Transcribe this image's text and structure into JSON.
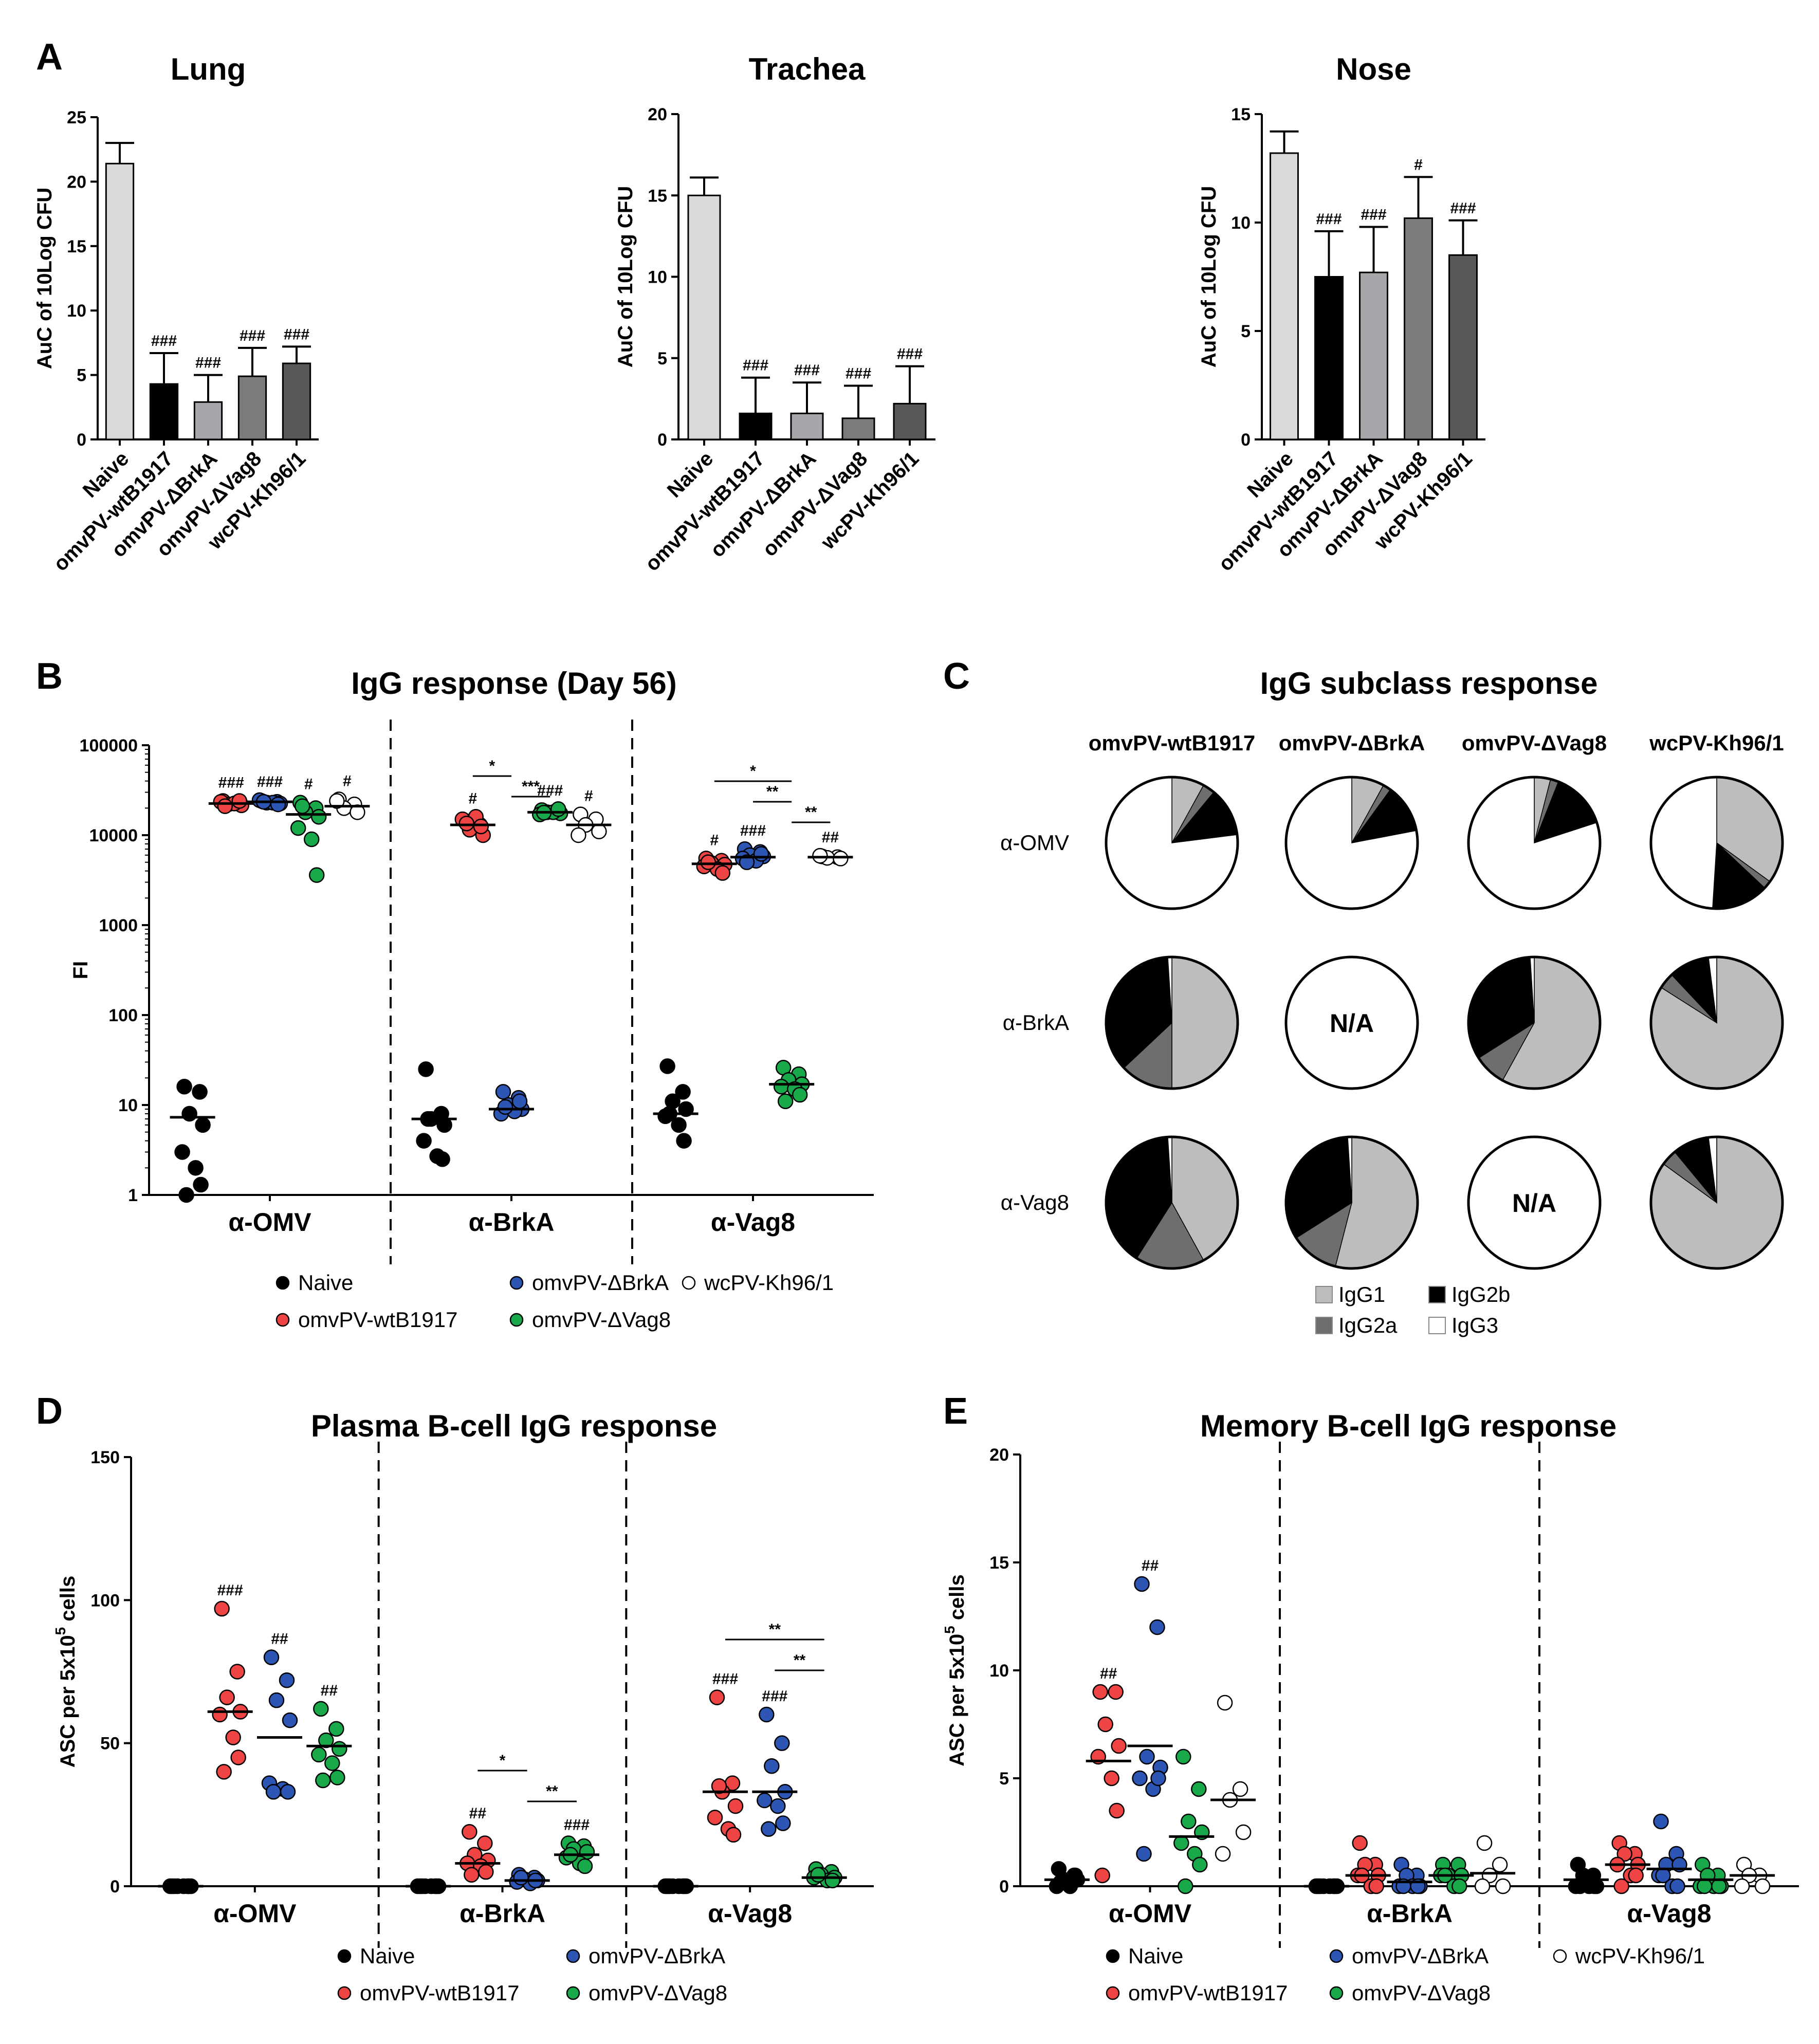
{
  "panel_labels": {
    "A": "A",
    "B": "B",
    "C": "C",
    "D": "D",
    "E": "E"
  },
  "colors": {
    "naive": "#000000",
    "wtB1917": "#ee4444",
    "dBrkA": "#2d55b4",
    "dVag8": "#19a84a",
    "wcPV": "#ffffff",
    "IgG1": "#bdbdbd",
    "IgG2a": "#6e6e6e",
    "IgG2b": "#000000",
    "IgG3": "#ffffff"
  },
  "chart_data": [
    {
      "id": "A-lung",
      "type": "bar",
      "title": "Lung",
      "ylabel": "AuC of 10Log CFU",
      "ylim": [
        0,
        25
      ],
      "yticks": [
        "0",
        "5",
        "10",
        "15",
        "20",
        "25"
      ],
      "categories": [
        "Naive",
        "omvPV-wtB1917",
        "omvPV-ΔBrkA",
        "omvPV-ΔVag8",
        "wcPV-Kh96/1"
      ],
      "values": [
        21.4,
        4.3,
        2.9,
        4.9,
        5.9
      ],
      "errors": [
        1.6,
        2.4,
        2.1,
        2.2,
        1.3
      ],
      "significance": [
        "",
        "###",
        "###",
        "###",
        "###"
      ],
      "bar_colors": [
        "#d9d9d9",
        "#000000",
        "#a6a7ab",
        "#7b7b7b",
        "#585858"
      ]
    },
    {
      "id": "A-trachea",
      "type": "bar",
      "title": "Trachea",
      "ylabel": "AuC of 10Log CFU",
      "ylim": [
        0,
        20
      ],
      "yticks": [
        "0",
        "5",
        "10",
        "15",
        "20"
      ],
      "categories": [
        "Naive",
        "omvPV-wtB1917",
        "omvPV-ΔBrkA",
        "omvPV-ΔVag8",
        "wcPV-Kh96/1"
      ],
      "values": [
        15.0,
        1.6,
        1.6,
        1.3,
        2.2
      ],
      "errors": [
        1.1,
        2.2,
        1.9,
        2.0,
        2.3
      ],
      "significance": [
        "",
        "###",
        "###",
        "###",
        "###"
      ],
      "bar_colors": [
        "#d9d9d9",
        "#000000",
        "#a6a7ab",
        "#7b7b7b",
        "#585858"
      ]
    },
    {
      "id": "A-nose",
      "type": "bar",
      "title": "Nose",
      "ylabel": "AuC of 10Log CFU",
      "ylim": [
        0,
        15
      ],
      "yticks": [
        "0",
        "5",
        "10",
        "15"
      ],
      "categories": [
        "Naive",
        "omvPV-wtB1917",
        "omvPV-ΔBrkA",
        "omvPV-ΔVag8",
        "wcPV-Kh96/1"
      ],
      "values": [
        13.2,
        7.5,
        7.7,
        10.2,
        8.5
      ],
      "errors": [
        1.0,
        2.1,
        2.1,
        1.9,
        1.6
      ],
      "significance": [
        "",
        "###",
        "###",
        "#",
        "###"
      ],
      "bar_colors": [
        "#d9d9d9",
        "#000000",
        "#a6a7ab",
        "#7b7b7b",
        "#585858"
      ]
    },
    {
      "id": "B",
      "type": "scatter",
      "title": "IgG response (Day 56)",
      "ylabel": "FI",
      "yscale": "log",
      "ylim": [
        1,
        100000
      ],
      "yticks": [
        "1",
        "10",
        "100",
        "1000",
        "10000",
        "100000"
      ],
      "groups": [
        "α-OMV",
        "α-BrkA",
        "α-Vag8"
      ],
      "series": [
        {
          "group": 0,
          "name": "Naive",
          "values": [
            16,
            14,
            8,
            6,
            3,
            2,
            1.3,
            1
          ],
          "median": 7.3,
          "sig": ""
        },
        {
          "group": 0,
          "name": "omvPV-wtB1917",
          "values": [
            24000,
            23000,
            22000,
            21500,
            23500,
            22500,
            24000,
            21000
          ],
          "median": 22500,
          "sig": "###"
        },
        {
          "group": 0,
          "name": "omvPV-ΔBrkA",
          "values": [
            24000,
            23500,
            23000,
            22500,
            24500,
            23000,
            22000,
            23500
          ],
          "median": 23500,
          "sig": "###"
        },
        {
          "group": 0,
          "name": "omvPV-ΔVag8",
          "values": [
            23000,
            20000,
            18000,
            16000,
            12000,
            9000,
            3600,
            21000
          ],
          "median": 17000,
          "sig": "#"
        },
        {
          "group": 0,
          "name": "wcPV-Kh96/1",
          "values": [
            25000,
            22000,
            20000,
            18000,
            24000
          ],
          "median": 21000,
          "sig": "#"
        },
        {
          "group": 1,
          "name": "Naive",
          "values": [
            25,
            8,
            7,
            6,
            4,
            2.7,
            2.5,
            7
          ],
          "median": 7,
          "sig": ""
        },
        {
          "group": 1,
          "name": "omvPV-wtB1917",
          "values": [
            14500,
            13000,
            11500,
            10000,
            15000,
            16000,
            12500,
            13500
          ],
          "median": 13000,
          "sig": "#"
        },
        {
          "group": 1,
          "name": "omvPV-ΔBrkA",
          "values": [
            14,
            12,
            10,
            9,
            8,
            8.5,
            11,
            9.5
          ],
          "median": 9,
          "sig": ""
        },
        {
          "group": 1,
          "name": "omvPV-ΔVag8",
          "values": [
            19000,
            18500,
            18000,
            17500,
            17000,
            18000,
            19500,
            17800
          ],
          "median": 18000,
          "sig": "###"
        },
        {
          "group": 1,
          "name": "wcPV-Kh96/1",
          "values": [
            17000,
            15000,
            13000,
            11000,
            10000
          ],
          "median": 13000,
          "sig": "#"
        },
        {
          "group": 2,
          "name": "Naive",
          "values": [
            27,
            14,
            11,
            9,
            7.5,
            6,
            4,
            8
          ],
          "median": 8,
          "sig": ""
        },
        {
          "group": 2,
          "name": "omvPV-wtB1917",
          "values": [
            5500,
            5200,
            4900,
            4700,
            4500,
            4200,
            3800,
            5000
          ],
          "median": 4800,
          "sig": "#"
        },
        {
          "group": 2,
          "name": "omvPV-ΔBrkA",
          "values": [
            7000,
            6500,
            6000,
            5800,
            5500,
            5200,
            6200,
            5000
          ],
          "median": 5700,
          "sig": "###"
        },
        {
          "group": 2,
          "name": "omvPV-ΔVag8",
          "values": [
            26,
            22,
            19,
            17,
            16,
            15,
            13,
            11
          ],
          "median": 17,
          "sig": ""
        },
        {
          "group": 2,
          "name": "wcPV-Kh96/1",
          "values": [
            5800,
            5700,
            5600,
            5500,
            5900
          ],
          "median": 5700,
          "sig": "##"
        }
      ],
      "brackets": [
        {
          "group": 1,
          "from": 1,
          "to": 2,
          "label": "*"
        },
        {
          "group": 1,
          "from": 2,
          "to": 3,
          "label": "***"
        },
        {
          "group": 2,
          "from": 1,
          "to": 3,
          "label": "*"
        },
        {
          "group": 2,
          "from": 2,
          "to": 3,
          "label": "**"
        },
        {
          "group": 2,
          "from": 3,
          "to": 4,
          "label": "**"
        }
      ],
      "legend": [
        "Naive",
        "omvPV-ΔBrkA",
        "wcPV-Kh96/1",
        "omvPV-wtB1917",
        "omvPV-ΔVag8"
      ]
    },
    {
      "id": "C",
      "type": "pie",
      "title": "IgG subclass response",
      "columns": [
        "omvPV-wtB1917",
        "omvPV-ΔBrkA",
        "omvPV-ΔVag8",
        "wcPV-Kh96/1"
      ],
      "rows": [
        "α-OMV",
        "α-BrkA",
        "α-Vag8"
      ],
      "na_label": "N/A",
      "slice_order": [
        "IgG1",
        "IgG2a",
        "IgG2b",
        "IgG3"
      ],
      "fractions": [
        [
          [
            0.08,
            0.03,
            0.12,
            0.77
          ],
          [
            0.08,
            0.02,
            0.12,
            0.78
          ],
          [
            0.04,
            0.02,
            0.14,
            0.8
          ],
          [
            0.35,
            0.02,
            0.14,
            0.49
          ]
        ],
        [
          [
            0.5,
            0.13,
            0.36,
            0.01
          ],
          null,
          [
            0.58,
            0.08,
            0.33,
            0.01
          ],
          [
            0.84,
            0.04,
            0.1,
            0.02
          ]
        ],
        [
          [
            0.42,
            0.17,
            0.4,
            0.01
          ],
          [
            0.54,
            0.12,
            0.33,
            0.01
          ],
          null,
          [
            0.85,
            0.04,
            0.09,
            0.02
          ]
        ]
      ],
      "legend": [
        "IgG1",
        "IgG2b",
        "IgG2a",
        "IgG3"
      ]
    },
    {
      "id": "D",
      "type": "scatter",
      "title": "Plasma B-cell IgG response",
      "ylabel": "ASC per 5x10",
      "ylabel_sup": "5",
      "ylabel_tail": " cells",
      "ylim": [
        0,
        150
      ],
      "yticks": [
        "0",
        "50",
        "100",
        "150"
      ],
      "groups": [
        "α-OMV",
        "α-BrkA",
        "α-Vag8"
      ],
      "series": [
        {
          "group": 0,
          "name": "Naive",
          "values": [
            0,
            0,
            0,
            0,
            0,
            0,
            0,
            0
          ],
          "median": 0,
          "sig": ""
        },
        {
          "group": 0,
          "name": "omvPV-wtB1917",
          "values": [
            97,
            75,
            66,
            61,
            60,
            52,
            45,
            40
          ],
          "median": 61,
          "sig": "###"
        },
        {
          "group": 0,
          "name": "omvPV-ΔBrkA",
          "values": [
            80,
            72,
            65,
            58,
            36,
            34,
            33,
            33
          ],
          "median": 52,
          "sig": "##"
        },
        {
          "group": 0,
          "name": "omvPV-ΔVag8",
          "values": [
            62,
            55,
            51,
            48,
            46,
            43,
            38,
            37
          ],
          "median": 49,
          "sig": "##"
        },
        {
          "group": 1,
          "name": "Naive",
          "values": [
            0,
            0,
            0,
            0,
            0,
            0,
            0,
            0
          ],
          "median": 0,
          "sig": ""
        },
        {
          "group": 1,
          "name": "omvPV-wtB1917",
          "values": [
            19,
            15,
            11,
            9,
            8,
            7,
            5,
            4
          ],
          "median": 8,
          "sig": "##"
        },
        {
          "group": 1,
          "name": "omvPV-ΔBrkA",
          "values": [
            4,
            3,
            2.5,
            2,
            1.5,
            1,
            2,
            3
          ],
          "median": 2,
          "sig": ""
        },
        {
          "group": 1,
          "name": "omvPV-ΔVag8",
          "values": [
            15,
            14,
            13,
            12,
            10,
            8,
            7,
            11
          ],
          "median": 11,
          "sig": "###"
        },
        {
          "group": 2,
          "name": "Naive",
          "values": [
            0,
            0,
            0,
            0,
            0,
            0,
            0,
            0
          ],
          "median": 0,
          "sig": ""
        },
        {
          "group": 2,
          "name": "omvPV-wtB1917",
          "values": [
            66,
            36,
            33,
            28,
            24,
            20,
            18,
            35
          ],
          "median": 33,
          "sig": "###"
        },
        {
          "group": 2,
          "name": "omvPV-ΔBrkA",
          "values": [
            60,
            50,
            42,
            33,
            30,
            28,
            22,
            20
          ],
          "median": 33,
          "sig": "###"
        },
        {
          "group": 2,
          "name": "omvPV-ΔVag8",
          "values": [
            6,
            5,
            4,
            3,
            3,
            2,
            2,
            4
          ],
          "median": 3,
          "sig": ""
        }
      ],
      "brackets": [
        {
          "group": 1,
          "from": 1,
          "to": 2,
          "label": "*"
        },
        {
          "group": 1,
          "from": 2,
          "to": 3,
          "label": "**"
        },
        {
          "group": 2,
          "from": 1,
          "to": 3,
          "label": "**"
        },
        {
          "group": 2,
          "from": 2,
          "to": 3,
          "label": "**"
        }
      ],
      "legend": [
        "Naive",
        "omvPV-ΔBrkA",
        "omvPV-wtB1917",
        "omvPV-ΔVag8"
      ]
    },
    {
      "id": "E",
      "type": "scatter",
      "title": "Memory B-cell IgG response",
      "ylabel": "ASC per 5x10",
      "ylabel_sup": "5",
      "ylabel_tail": " cells",
      "ylim": [
        0,
        20
      ],
      "yticks": [
        "0",
        "5",
        "10",
        "15",
        "20"
      ],
      "groups": [
        "α-OMV",
        "α-BrkA",
        "α-Vag8"
      ],
      "series": [
        {
          "group": 0,
          "name": "Naive",
          "values": [
            0.8,
            0.5,
            0.3,
            0.3,
            0,
            0,
            0.5,
            0.2
          ],
          "median": 0.3,
          "sig": ""
        },
        {
          "group": 0,
          "name": "omvPV-wtB1917",
          "values": [
            9,
            9,
            7.5,
            6.5,
            6,
            5,
            3.5,
            0.5
          ],
          "median": 5.8,
          "sig": "##"
        },
        {
          "group": 0,
          "name": "omvPV-ΔBrkA",
          "values": [
            14,
            12,
            6,
            5.5,
            5,
            4.5,
            5,
            1.5
          ],
          "median": 6.5,
          "sig": "##"
        },
        {
          "group": 0,
          "name": "omvPV-ΔVag8",
          "values": [
            6,
            4.5,
            3,
            2.5,
            2,
            1.5,
            1,
            0
          ],
          "median": 2.3,
          "sig": ""
        },
        {
          "group": 0,
          "name": "wcPV-Kh96/1",
          "values": [
            8.5,
            4.5,
            4,
            2.5,
            1.5
          ],
          "median": 4,
          "sig": ""
        },
        {
          "group": 1,
          "name": "Naive",
          "values": [
            0,
            0,
            0,
            0,
            0,
            0,
            0,
            0
          ],
          "median": 0,
          "sig": ""
        },
        {
          "group": 1,
          "name": "omvPV-wtB1917",
          "values": [
            2,
            1,
            1,
            0.5,
            0.5,
            0,
            0,
            0.5
          ],
          "median": 0.5,
          "sig": ""
        },
        {
          "group": 1,
          "name": "omvPV-ΔBrkA",
          "values": [
            1,
            0.5,
            0.5,
            0,
            0,
            0,
            0,
            0
          ],
          "median": 0.2,
          "sig": ""
        },
        {
          "group": 1,
          "name": "omvPV-ΔVag8",
          "values": [
            1,
            1,
            0.5,
            0.5,
            0.5,
            0,
            0,
            0.5
          ],
          "median": 0.5,
          "sig": ""
        },
        {
          "group": 1,
          "name": "wcPV-Kh96/1",
          "values": [
            2,
            1,
            0.5,
            0,
            0
          ],
          "median": 0.6,
          "sig": ""
        },
        {
          "group": 2,
          "name": "Naive",
          "values": [
            1,
            0.5,
            0.5,
            0,
            0,
            0,
            0,
            0
          ],
          "median": 0.3,
          "sig": ""
        },
        {
          "group": 2,
          "name": "omvPV-wtB1917",
          "values": [
            2,
            1.5,
            1.5,
            1,
            1,
            0.5,
            0.5,
            0
          ],
          "median": 1,
          "sig": ""
        },
        {
          "group": 2,
          "name": "omvPV-ΔBrkA",
          "values": [
            3,
            1.5,
            1,
            1,
            0.5,
            0,
            0,
            0.5
          ],
          "median": 0.8,
          "sig": ""
        },
        {
          "group": 2,
          "name": "omvPV-ΔVag8",
          "values": [
            1,
            0.5,
            0.5,
            0,
            0,
            0,
            0,
            0
          ],
          "median": 0.3,
          "sig": ""
        },
        {
          "group": 2,
          "name": "wcPV-Kh96/1",
          "values": [
            1,
            0.5,
            0.5,
            0,
            0
          ],
          "median": 0.5,
          "sig": ""
        }
      ],
      "brackets": [],
      "legend": [
        "Naive",
        "omvPV-ΔBrkA",
        "wcPV-Kh96/1",
        "omvPV-wtB1917",
        "omvPV-ΔVag8"
      ]
    }
  ]
}
